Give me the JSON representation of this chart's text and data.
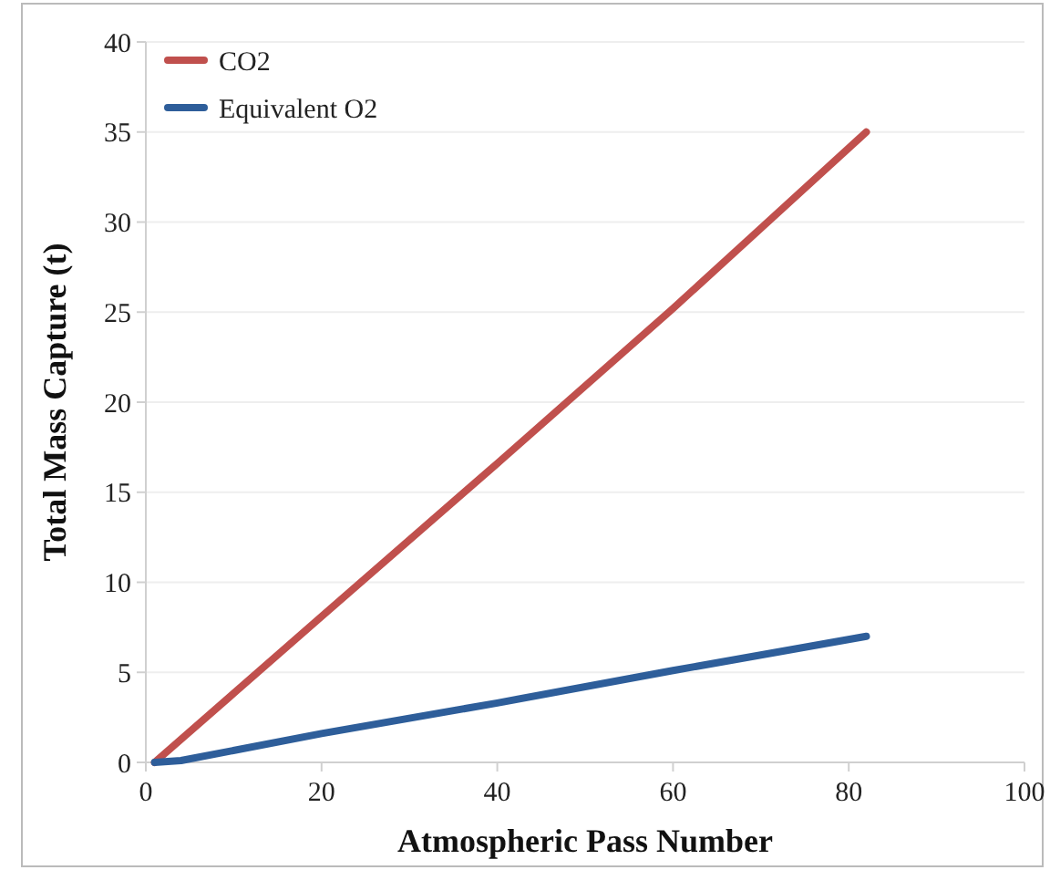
{
  "chart_data": {
    "type": "line",
    "xlabel": "Atmospheric Pass Number",
    "ylabel": "Total Mass Capture (t)",
    "xlim": [
      0,
      100
    ],
    "xticks": [
      0,
      20,
      40,
      60,
      80,
      100
    ],
    "ylim": [
      0,
      40
    ],
    "yticks": [
      0,
      5,
      10,
      15,
      20,
      25,
      30,
      35,
      40
    ],
    "grid": "y",
    "legend": "top left",
    "marker": "none",
    "line_style": "solid",
    "series": [
      {
        "name": "CO2",
        "color": "#c0504d",
        "x": [
          1,
          20,
          40,
          60,
          82
        ],
        "values": [
          0,
          8.1,
          16.6,
          25.2,
          35
        ]
      },
      {
        "name": "Equivalent O2",
        "color": "#2e5e9a",
        "x": [
          1,
          4,
          20,
          40,
          60,
          82
        ],
        "values": [
          0,
          0.1,
          1.6,
          3.3,
          5.1,
          7
        ]
      }
    ]
  }
}
